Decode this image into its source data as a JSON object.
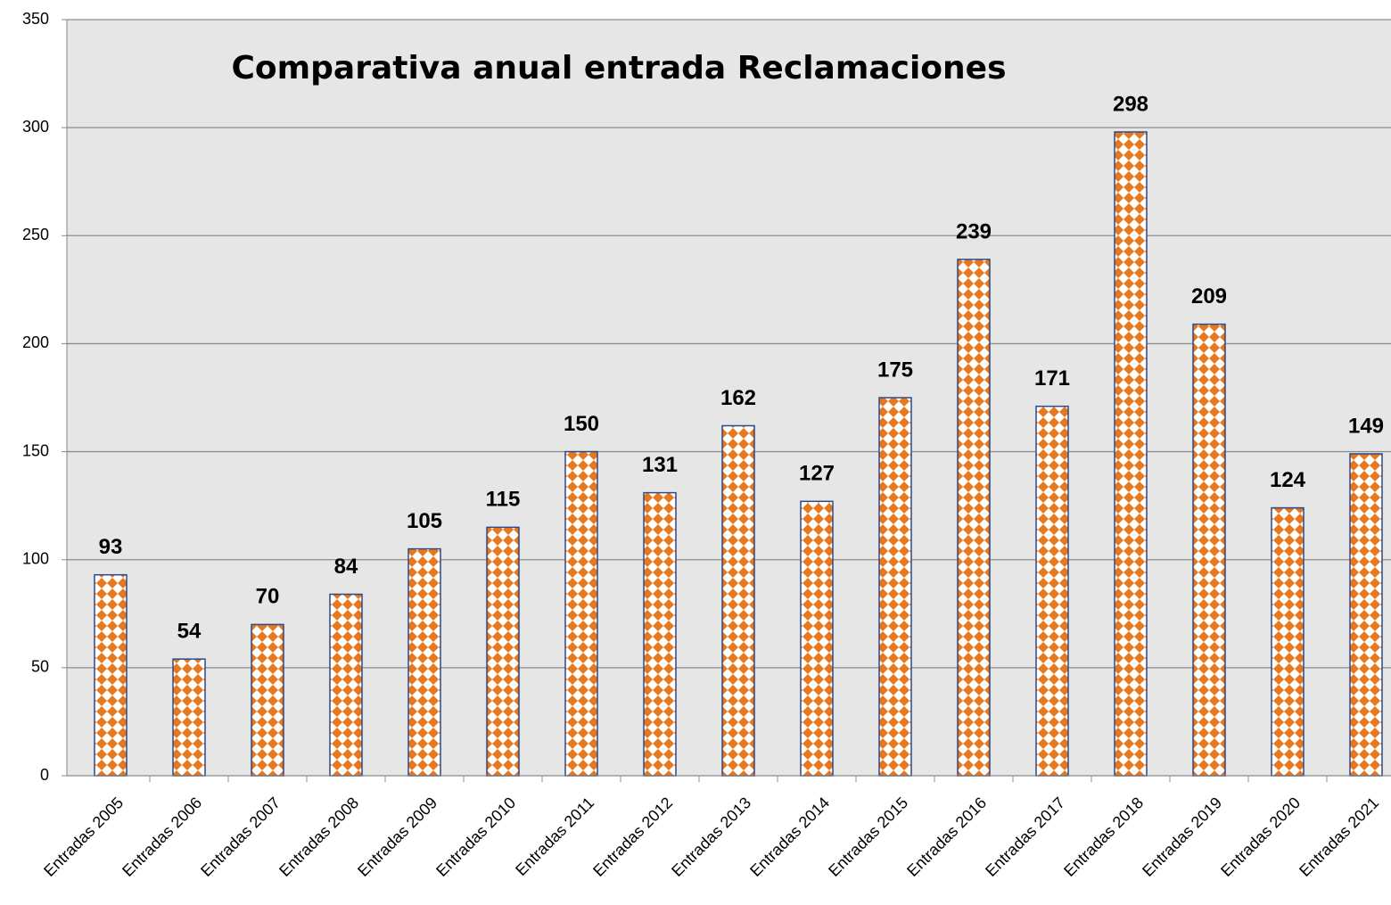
{
  "chart_data": {
    "type": "bar",
    "title": "Comparativa anual entrada Reclamaciones",
    "categories": [
      "Entradas 2005",
      "Entradas 2006",
      "Entradas 2007",
      "Entradas 2008",
      "Entradas 2009",
      "Entradas 2010",
      "Entradas 2011",
      "Entradas 2012",
      "Entradas 2013",
      "Entradas 2014",
      "Entradas 2015",
      "Entradas 2016",
      "Entradas 2017",
      "Entradas 2018",
      "Entradas 2019",
      "Entradas 2020",
      "Entradas 2021"
    ],
    "values": [
      93,
      54,
      70,
      84,
      105,
      115,
      150,
      131,
      162,
      127,
      175,
      239,
      171,
      298,
      209,
      124,
      149
    ],
    "color": "#e8781e",
    "ylim": [
      0,
      350
    ],
    "yticks": [
      0,
      50,
      100,
      150,
      200,
      250,
      300,
      350
    ],
    "grid": true
  }
}
